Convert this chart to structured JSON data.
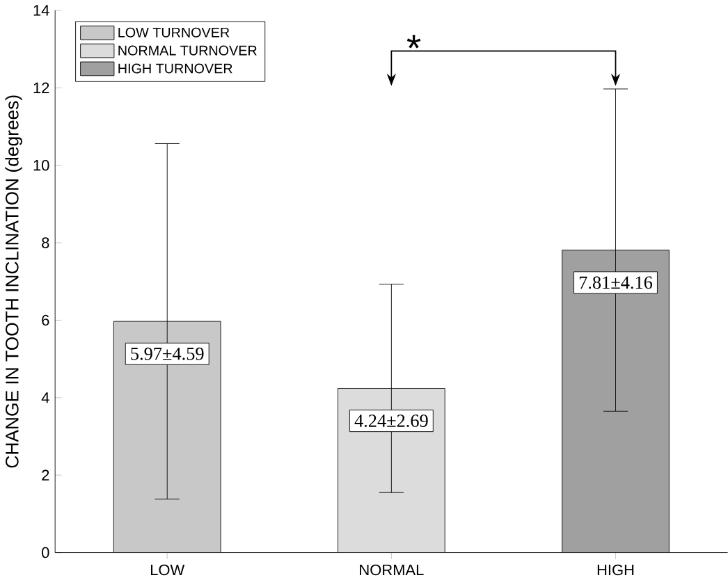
{
  "chart_data": {
    "type": "bar",
    "ylabel": "CHANGE IN TOOTH INCLINATION (degrees)",
    "categories": [
      "LOW",
      "NORMAL",
      "HIGH"
    ],
    "series": [
      {
        "name": "LOW TURNOVER",
        "color": "#c8c8c8",
        "values": [
          5.97,
          null,
          null
        ],
        "errors": [
          4.59,
          null,
          null
        ],
        "value_labels": [
          "5.97±4.59",
          null,
          null
        ]
      },
      {
        "name": "NORMAL TURNOVER",
        "color": "#dcdcdc",
        "values": [
          null,
          4.24,
          null
        ],
        "errors": [
          null,
          2.69,
          null
        ],
        "value_labels": [
          null,
          "4.24±2.69",
          null
        ]
      },
      {
        "name": "HIGH TURNOVER",
        "color": "#a0a0a0",
        "values": [
          null,
          null,
          7.81
        ],
        "errors": [
          null,
          null,
          4.16
        ],
        "value_labels": [
          null,
          null,
          "7.81±4.16"
        ]
      }
    ],
    "ylim": [
      0,
      14
    ],
    "yticks": [
      0,
      2,
      4,
      6,
      8,
      10,
      12,
      14
    ],
    "legend": "top left",
    "annotations": [
      "*"
    ]
  }
}
